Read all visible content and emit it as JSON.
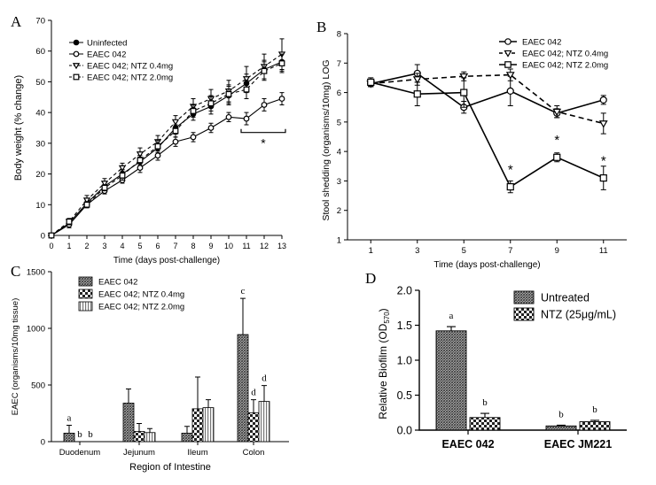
{
  "chart_data": [
    {
      "panel": "A",
      "type": "line",
      "xlabel": "Time (days post-challenge)",
      "ylabel": "Body weight (% change)",
      "xlim": [
        0,
        13
      ],
      "ylim": [
        0,
        70
      ],
      "xticks": [
        0,
        1,
        2,
        3,
        4,
        5,
        6,
        7,
        8,
        9,
        10,
        11,
        12,
        13
      ],
      "yticks": [
        0,
        10,
        20,
        30,
        40,
        50,
        60,
        70
      ],
      "legend_position": "top-left",
      "annotation": "*",
      "x": [
        0,
        1,
        2,
        3,
        4,
        5,
        6,
        7,
        8,
        9,
        10,
        11,
        12,
        13
      ],
      "series": [
        {
          "name": "Uninfected",
          "marker": "filled-circle",
          "line": "solid",
          "values": [
            0,
            4,
            10.5,
            16,
            20,
            24,
            28.5,
            35,
            39.5,
            42,
            45.5,
            49.5,
            54,
            56.5
          ],
          "errors": [
            0,
            1,
            1,
            1.5,
            1.5,
            1.5,
            2,
            2,
            2,
            2.5,
            3,
            3,
            3,
            3
          ]
        },
        {
          "name": "EAEC 042",
          "marker": "open-circle",
          "line": "solid",
          "values": [
            0,
            3.5,
            10,
            14.5,
            18,
            22,
            26,
            30.5,
            32,
            35,
            38.5,
            38,
            42.5,
            44.5
          ],
          "errors": [
            0,
            1,
            1,
            1,
            1,
            1.5,
            1.5,
            1.5,
            1.5,
            1.5,
            1.5,
            2,
            2,
            2
          ]
        },
        {
          "name": "EAEC 042; NTZ 0.4mg",
          "marker": "open-triangle-down",
          "line": "dashed",
          "values": [
            0,
            4.5,
            11.5,
            17,
            22,
            26.5,
            30.5,
            37,
            42,
            44.5,
            47,
            51,
            55,
            59
          ],
          "errors": [
            0,
            1,
            1.5,
            1.5,
            1.5,
            2,
            2,
            2,
            2.5,
            3,
            3.5,
            4,
            4,
            5
          ]
        },
        {
          "name": "EAEC 042; NTZ 2.0mg",
          "marker": "open-square",
          "line": "dashed",
          "values": [
            0,
            4.5,
            10,
            15.5,
            19.5,
            24.5,
            29,
            34,
            40.5,
            43,
            46,
            47.5,
            53.5,
            56
          ],
          "errors": [
            0,
            1,
            1,
            1,
            1.5,
            1.5,
            2,
            2,
            2,
            2.5,
            3,
            3,
            3,
            3
          ]
        }
      ]
    },
    {
      "panel": "B",
      "type": "line",
      "xlabel": "Time (days post-challenge)",
      "ylabel": "Stool shedding (organisms/10mg) LOG",
      "xlim": [
        0,
        12
      ],
      "ylim": [
        1,
        8
      ],
      "xticks": [
        1,
        3,
        5,
        7,
        9,
        11
      ],
      "yticks": [
        1,
        2,
        3,
        4,
        5,
        6,
        7,
        8
      ],
      "legend_position": "top-right",
      "x": [
        1,
        3,
        5,
        7,
        9,
        11
      ],
      "annotations": [
        {
          "x": 7,
          "y": 3.3,
          "text": "*"
        },
        {
          "x": 9,
          "y": 4.3,
          "text": "*"
        },
        {
          "x": 11,
          "y": 3.6,
          "text": "*"
        }
      ],
      "series": [
        {
          "name": "EAEC 042",
          "marker": "open-circle",
          "line": "solid",
          "values": [
            6.3,
            6.65,
            5.5,
            6.05,
            5.3,
            5.75
          ],
          "errors": [
            0.1,
            0.3,
            0.2,
            0.5,
            0.15,
            0.15
          ]
        },
        {
          "name": "EAEC 042; NTZ 0.4mg",
          "marker": "open-triangle-down",
          "line": "dashed",
          "values": [
            6.3,
            6.45,
            6.55,
            6.6,
            5.35,
            4.95
          ],
          "errors": [
            0.1,
            0.2,
            0.15,
            0.2,
            0.2,
            0.35
          ]
        },
        {
          "name": "EAEC 042; NTZ 2.0mg",
          "marker": "open-square",
          "line": "solid",
          "values": [
            6.35,
            5.95,
            6.0,
            2.8,
            3.8,
            3.1
          ],
          "errors": [
            0.15,
            0.4,
            0.5,
            0.2,
            0.15,
            0.4
          ]
        }
      ]
    },
    {
      "panel": "C",
      "type": "bar",
      "xlabel": "Region of Intestine",
      "ylabel": "EAEC (organisms/10mg tissue)",
      "ylim": [
        0,
        1500
      ],
      "yticks": [
        0,
        500,
        1000,
        1500
      ],
      "categories": [
        "Duodenum",
        "Jejunum",
        "Ileum",
        "Colon"
      ],
      "legend_position": "top-left",
      "series": [
        {
          "name": "EAEC 042",
          "pattern": "dark-hatch",
          "values": [
            75,
            340,
            75,
            945
          ],
          "errors": [
            70,
            125,
            60,
            320
          ],
          "letters": [
            "a",
            "",
            "",
            "c"
          ]
        },
        {
          "name": "EAEC 042; NTZ 0.4mg",
          "pattern": "check",
          "values": [
            0,
            90,
            290,
            255
          ],
          "errors": [
            0,
            70,
            280,
            115
          ],
          "letters": [
            "b",
            "",
            "",
            "d"
          ]
        },
        {
          "name": "EAEC 042; NTZ 2.0mg",
          "pattern": "light-stripes",
          "values": [
            0,
            80,
            300,
            355
          ],
          "errors": [
            0,
            35,
            70,
            140
          ],
          "letters": [
            "b",
            "",
            "",
            "d"
          ]
        }
      ]
    },
    {
      "panel": "D",
      "type": "bar",
      "xlabel": "",
      "ylabel": "Relative Biofilm (OD",
      "ylabel_sub": "570",
      "ylabel_end": ")",
      "ylim": [
        0,
        2.0
      ],
      "yticks": [
        "0.0",
        "0.5",
        "1.0",
        "1.5",
        "2.0"
      ],
      "categories": [
        "EAEC 042",
        "EAEC JM221"
      ],
      "legend_position": "top-right",
      "series": [
        {
          "name": "Untreated",
          "pattern": "dark-hatch",
          "values": [
            1.42,
            0.06
          ],
          "errors": [
            0.06,
            0.01
          ],
          "letters": [
            "a",
            "b"
          ]
        },
        {
          "name": "NTZ (25μg/mL)",
          "pattern": "check",
          "values": [
            0.18,
            0.12
          ],
          "errors": [
            0.06,
            0.02
          ],
          "letters": [
            "b",
            "b"
          ]
        }
      ]
    }
  ],
  "labels": {
    "A": "A",
    "B": "B",
    "C": "C",
    "D": "D"
  }
}
